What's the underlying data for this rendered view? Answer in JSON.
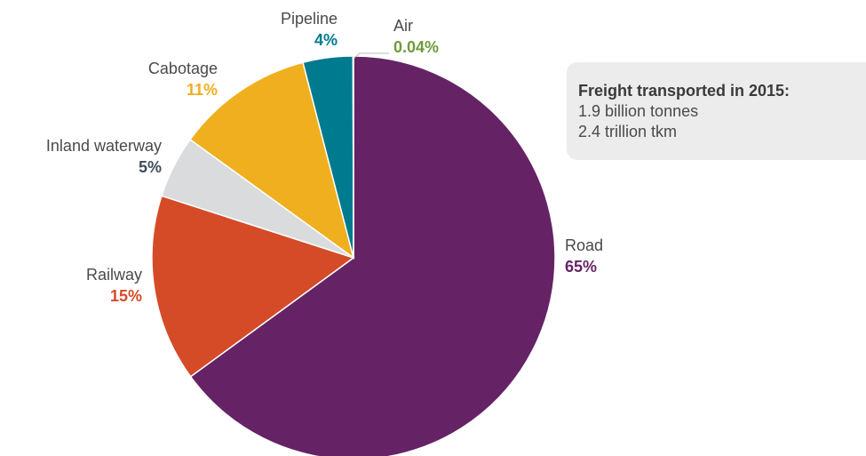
{
  "chart_data": {
    "type": "pie",
    "categories": [
      "Road",
      "Railway",
      "Inland waterway",
      "Cabotage",
      "Pipeline",
      "Air"
    ],
    "values": [
      65,
      15,
      5,
      11,
      4,
      0.04
    ],
    "value_labels": [
      "65%",
      "15%",
      "5%",
      "11%",
      "4%",
      "0.04%"
    ],
    "colors": [
      "#652365",
      "#d54b27",
      "#d9dbdc",
      "#f0af1e",
      "#007a8e",
      "#6e9a3c"
    ],
    "label_colors": [
      "#652365",
      "#d54b27",
      "#3e4e5a",
      "#f0af1e",
      "#007a8e",
      "#6e9a3c"
    ],
    "annotation": {
      "title": "Freight transported in 2015:",
      "lines": [
        "1.9 billion tonnes",
        "2.4 trillion tkm"
      ]
    }
  }
}
